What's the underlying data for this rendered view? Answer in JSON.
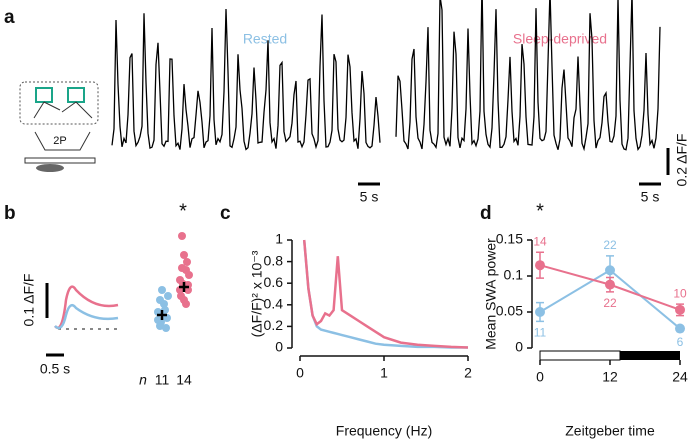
{
  "panels": {
    "a": "a",
    "b": "b",
    "c": "c",
    "d": "d"
  },
  "panel_a": {
    "labels": [
      "Rested",
      "Sleep-deprived"
    ],
    "scale_time": [
      "5 s",
      "5 s"
    ],
    "scale_amp": "0.2 ΔF/F",
    "microscope": "2P"
  },
  "panel_b": {
    "scale_amp": "0.1 ΔF/F",
    "scale_time": "0.5 s",
    "n_label": "n",
    "n": [
      11,
      14
    ],
    "significance": "*"
  },
  "chart_data": [
    {
      "type": "line",
      "xlabel": "Frequency (Hz)",
      "ylabel": "(ΔF/F)² x 10⁻³",
      "x": [
        0.05,
        0.1,
        0.15,
        0.2,
        0.25,
        0.3,
        0.35,
        0.4,
        0.45,
        0.5,
        0.6,
        0.7,
        0.8,
        0.9,
        1.0,
        1.2,
        1.4,
        1.6,
        1.8,
        2.0
      ],
      "series": [
        {
          "name": "Rested",
          "color": "#8cc0e4",
          "values": [
            1.0,
            0.55,
            0.3,
            0.2,
            0.17,
            0.16,
            0.15,
            0.14,
            0.13,
            0.12,
            0.1,
            0.08,
            0.06,
            0.04,
            0.03,
            0.02,
            0.01,
            0.01,
            0.005,
            0.005
          ]
        },
        {
          "name": "Sleep-deprived",
          "color": "#e8718d",
          "values": [
            1.0,
            0.55,
            0.3,
            0.22,
            0.25,
            0.32,
            0.3,
            0.35,
            0.85,
            0.35,
            0.3,
            0.25,
            0.2,
            0.15,
            0.1,
            0.05,
            0.03,
            0.02,
            0.01,
            0.005
          ]
        }
      ],
      "xlim": [
        0,
        2
      ],
      "ylim": [
        0,
        1
      ],
      "xticks": [
        0,
        1,
        2
      ],
      "yticks": [
        0,
        0.2,
        0.4,
        0.6,
        0.8,
        1
      ]
    },
    {
      "type": "errorline",
      "xlabel": "Zeitgeber time",
      "ylabel": "Mean SWA power",
      "significance": "*",
      "x": [
        0,
        12,
        24
      ],
      "series": [
        {
          "name": "Rested",
          "color": "#8cc0e4",
          "values": [
            0.05,
            0.108,
            0.027
          ],
          "errors": [
            0.013,
            0.02,
            0.003
          ],
          "n": [
            11,
            22,
            6
          ]
        },
        {
          "name": "Sleep-deprived",
          "color": "#e8718d",
          "values": [
            0.115,
            0.088,
            0.053
          ],
          "errors": [
            0.018,
            0.01,
            0.008
          ],
          "n": [
            14,
            22,
            10
          ]
        }
      ],
      "xlim": [
        0,
        24
      ],
      "ylim": [
        0,
        0.15
      ],
      "xticks": [
        0,
        12,
        24
      ],
      "yticks": [
        0,
        0.05,
        0.1,
        0.15
      ]
    }
  ]
}
